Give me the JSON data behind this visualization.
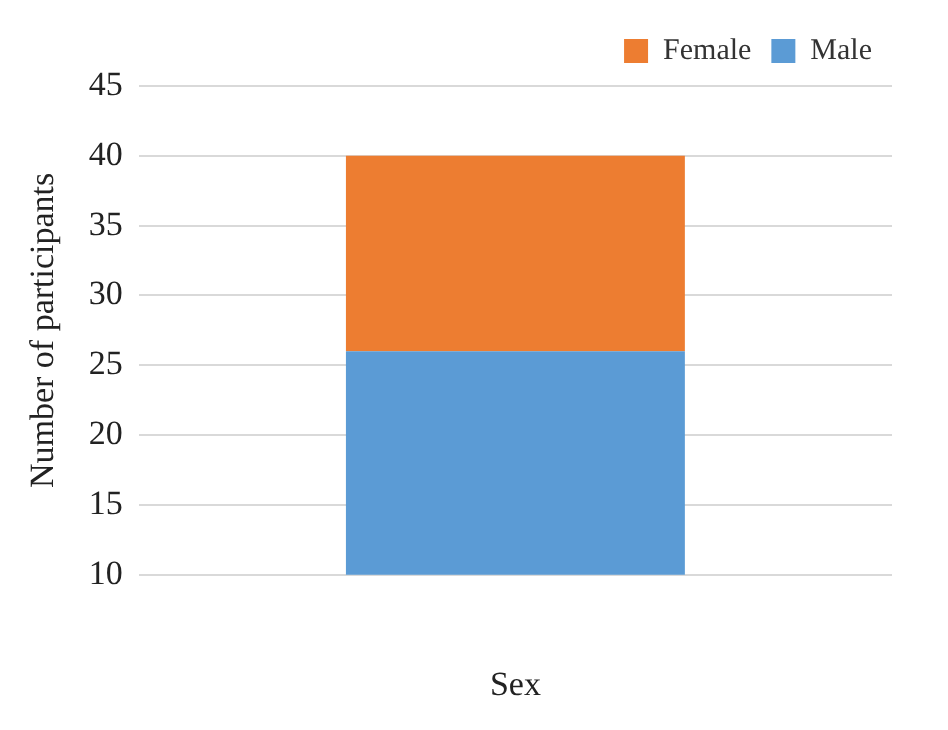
{
  "chart_data": {
    "type": "bar",
    "stacked": true,
    "categories": [
      null
    ],
    "xlabel": "Sex",
    "ylabel": "Number of participants",
    "series": [
      {
        "name": "Male",
        "color": "#5b9bd5",
        "values": [
          26
        ]
      },
      {
        "name": "Female",
        "color": "#ed7d31",
        "values": [
          14
        ]
      }
    ],
    "ylim": [
      10,
      45
    ],
    "yticks": [
      10,
      15,
      20,
      25,
      30,
      35,
      40,
      45
    ],
    "grid": "y",
    "legend": "top right"
  }
}
